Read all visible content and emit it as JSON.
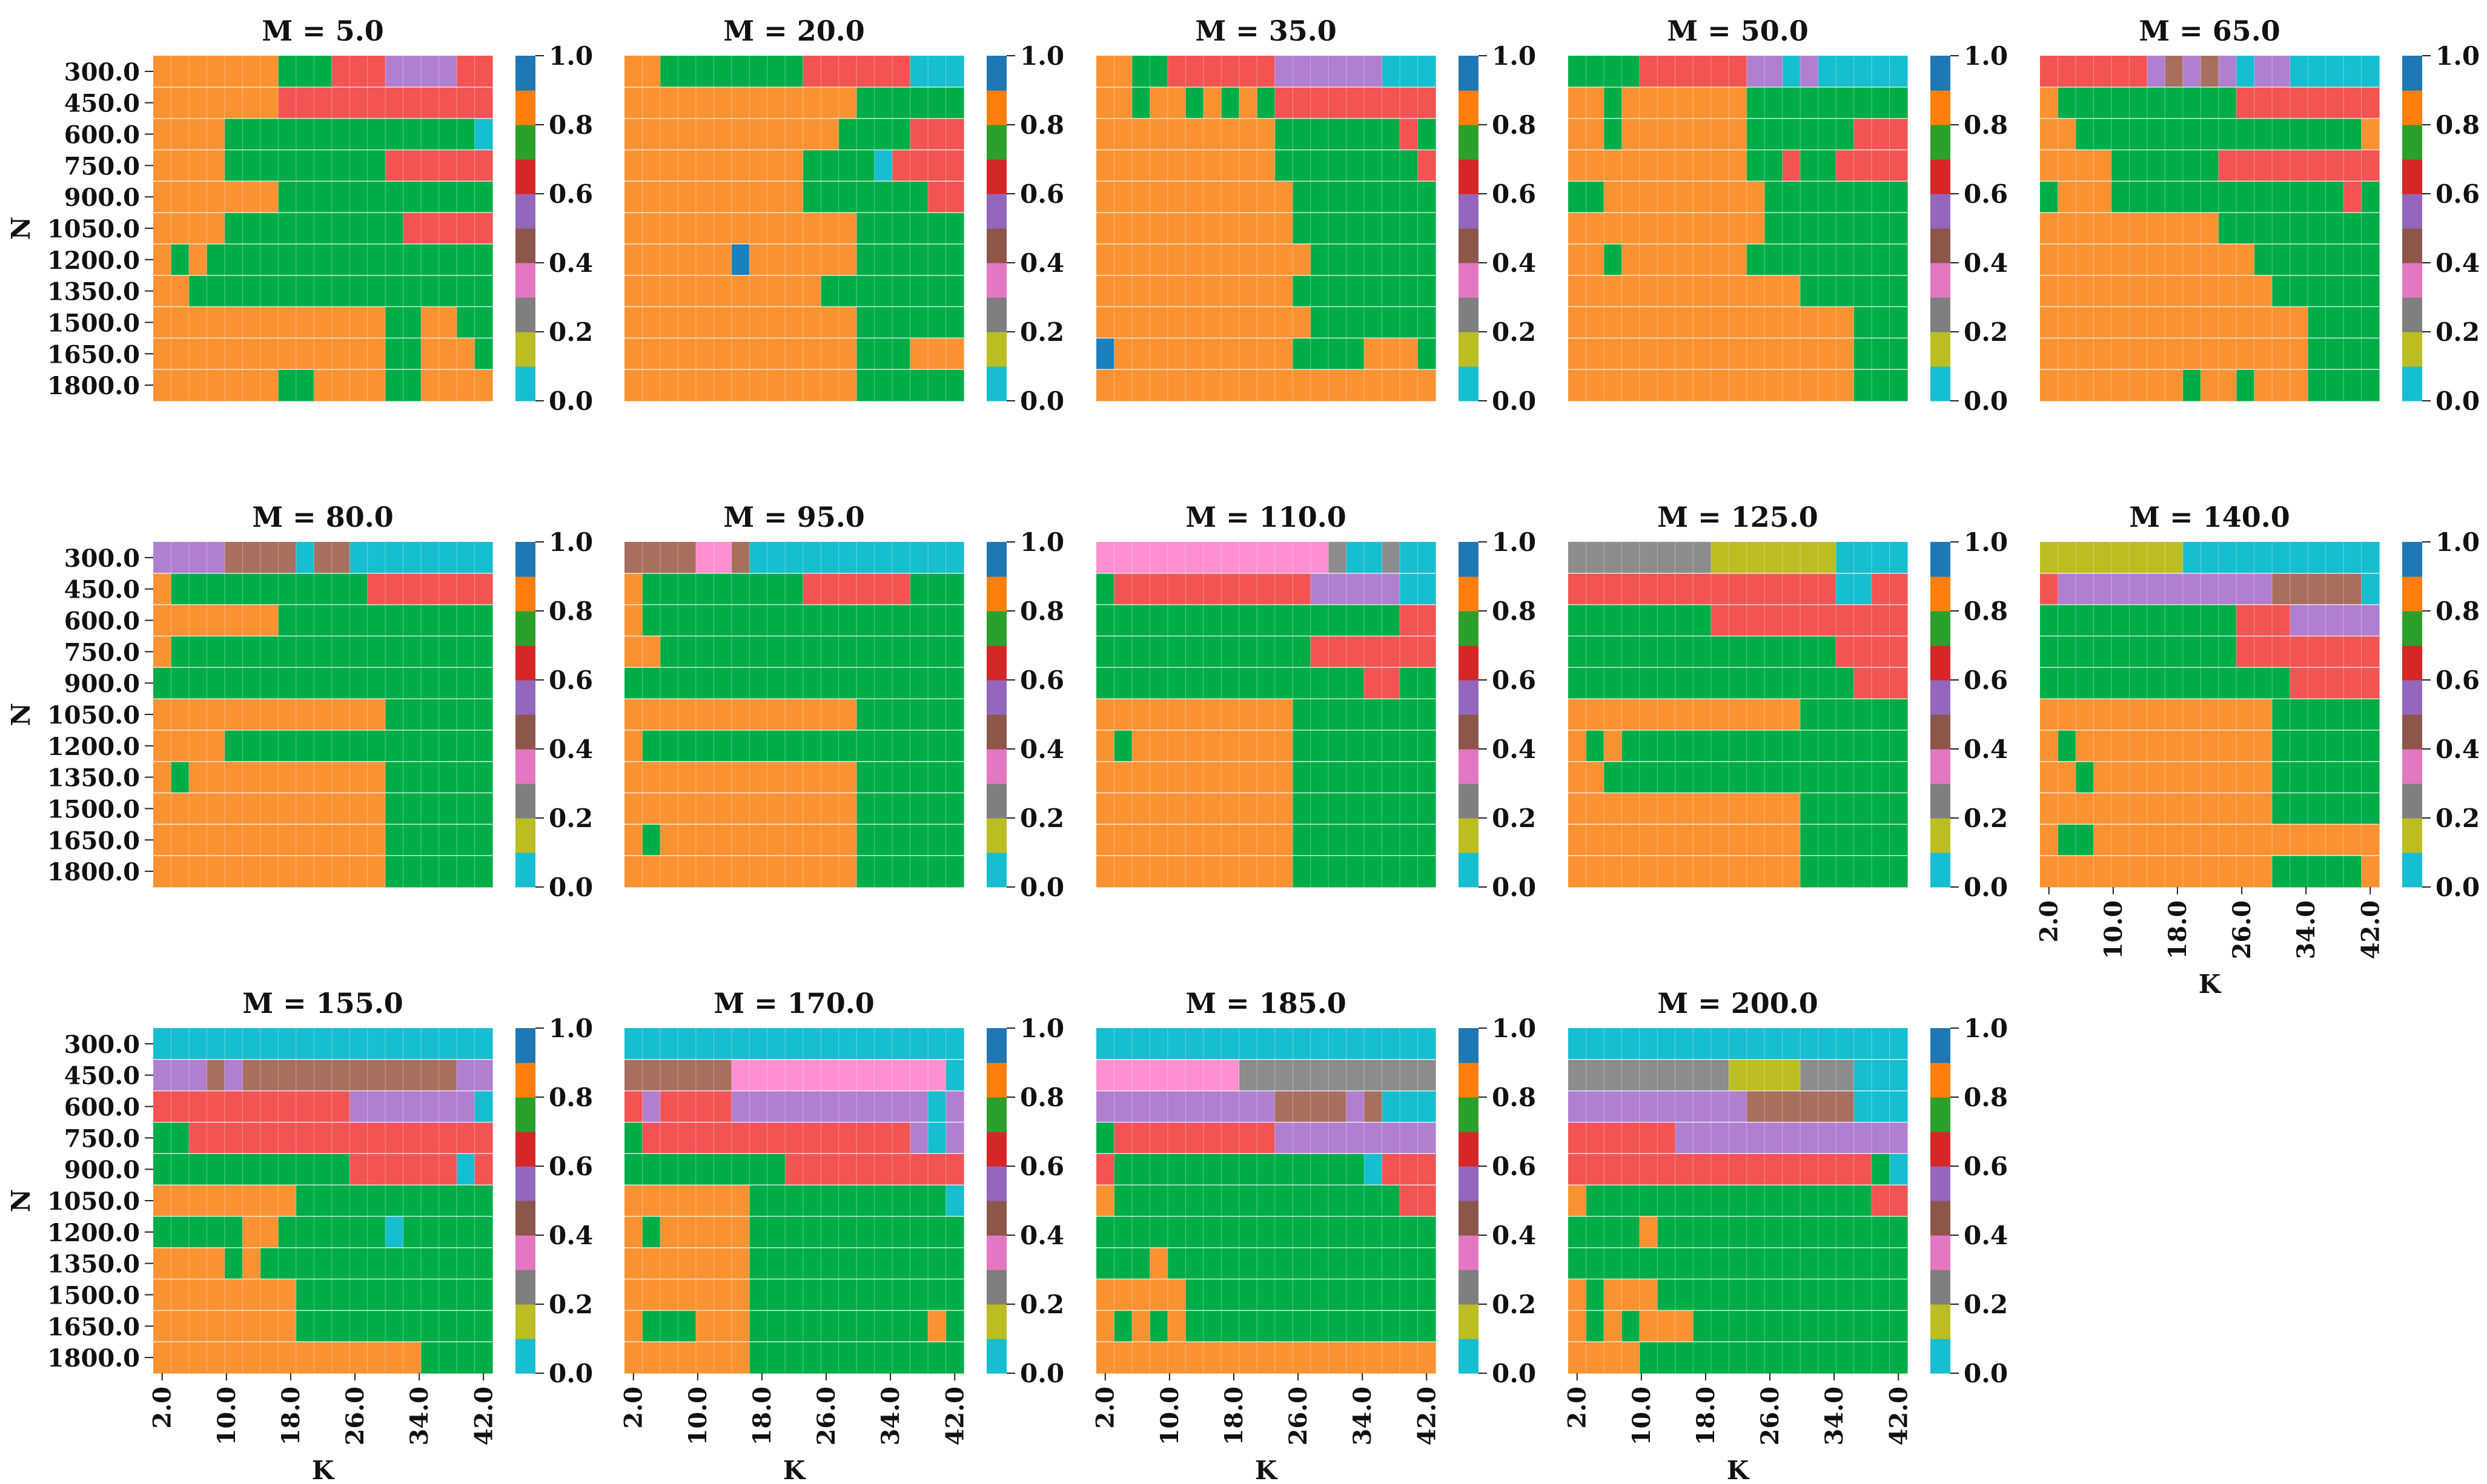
{
  "chart_data": {
    "type": "heatmap",
    "figure_panels": "14 heatmaps, 5 columns x 3 rows",
    "y_label": "N",
    "x_label": "K",
    "y_tick_labels": [
      "300.0",
      "450.0",
      "600.0",
      "750.0",
      "900.0",
      "1050.0",
      "1200.0",
      "1350.0",
      "1500.0",
      "1650.0",
      "1800.0"
    ],
    "x_tick_labels": [
      "2.0",
      "10.0",
      "18.0",
      "26.0",
      "34.0",
      "42.0"
    ],
    "colorbar_tick_labels": [
      "1.0",
      "0.8",
      "0.6",
      "0.4",
      "0.2",
      "0.0"
    ],
    "colorbar_levels": [
      1.0,
      0.9,
      0.8,
      0.7,
      0.6,
      0.5,
      0.4,
      0.3,
      0.2,
      0.1,
      0.0
    ],
    "palette": [
      "#17becf",
      "#bcbd22",
      "#7f7f7f",
      "#e377c2",
      "#8c564b",
      "#9467bd",
      "#d62728",
      "#2ca02c",
      "#ff7f0e",
      "#1f77b4"
    ],
    "cell_colors": {
      "0": "#17becf",
      "1": "#bcbd22",
      "2": "#8c8c8c",
      "3": "#ff8fd0",
      "4": "#a86e5e",
      "5": "#b07fd0",
      "6": "#f25353",
      "7": "#00ad48",
      "8": "#fa9232",
      "9": "#1a80bb"
    },
    "cell_value_note": "each grid cell holds a colour class 0-9; class k corresponds to value (k+0.5)/10 on the colourbar",
    "panels": [
      {
        "title": "M = 5.0",
        "grid": [
          "8888888777666555566",
          "8888888666666666666",
          "8888777777777777770",
          "8888777777777666666",
          "8888888777777777777",
          "8888777777777766666",
          "8787777777777777777",
          "8877777777777777777",
          "8888888888888778877",
          "8888888888888778887",
          "8888888778888778888"
        ]
      },
      {
        "title": "M = 20.0",
        "grid": [
          "8877777777666666000",
          "8888888888888777777",
          "8888888888887777666",
          "8888888888777706666",
          "8888888888777777766",
          "8888888888888777777",
          "8888889888888777777",
          "8888888888877777777",
          "8888888888888777777",
          "8888888888888777888",
          "8888888888888777777"
        ]
      },
      {
        "title": "M = 35.0",
        "grid": [
          "8877666666555555000",
          "8878878787666666666",
          "8888888888777777767",
          "8888888888777777776",
          "8888888888877777777",
          "8888888888877777777",
          "8888888888887777777",
          "8888888888877777777",
          "8888888888887777777",
          "9888888888877778887",
          "8888888888888888888"
        ]
      },
      {
        "title": "M = 50.0",
        "grid": [
          "7777666666550500000",
          "8878888888777777777",
          "8878888888777777666",
          "8888888888776776666",
          "7788888888877777777",
          "8888888888877777777",
          "8878888888777777777",
          "8888888888888777777",
          "8888888888888888777",
          "8888888888888888777",
          "8888888888888888777"
        ]
      },
      {
        "title": "M = 65.0",
        "grid": [
          "6666665454505500000",
          "8777777777766666666",
          "8877777777777777778",
          "8888777777666666666",
          "7888777777777777767",
          "8888888888777777777",
          "8888888888887777777",
          "8888888888888777777",
          "8888888888888887777",
          "8888888888888887777",
          "8888888878878887777"
        ]
      },
      {
        "title": "M = 80.0",
        "grid": [
          "5555444404400000000",
          "8777777777776666666",
          "8888888777777777777",
          "8777777777777777777",
          "7777777777777777777",
          "8888888888888777777",
          "8888777777777777777",
          "8788888888888777777",
          "8888888888888777777",
          "8888888888888777777",
          "8888888888888777777"
        ]
      },
      {
        "title": "M = 95.0",
        "grid": [
          "4444334000000000000",
          "8777777777666666777",
          "8777777777777777777",
          "8877777777777777777",
          "7777777777777777777",
          "8888888888888777777",
          "8777777777777777777",
          "8888888888888777777",
          "8888888888888777777",
          "8788888888888777777",
          "8888888888888777777"
        ]
      },
      {
        "title": "M = 110.0",
        "grid": [
          "3333333333333200200",
          "7666666666665555500",
          "7777777777777777766",
          "7777777777776666666",
          "7777777777777776677",
          "8888888888877777777",
          "8788888888877777777",
          "8888888888877777777",
          "8888888888877777777",
          "8888888888877777777",
          "8888888888877777777"
        ]
      },
      {
        "title": "M = 125.0",
        "grid": [
          "2222222211111110000",
          "6666666666666660066",
          "7777777766666666666",
          "7777777777777776666",
          "7777777777777777666",
          "8888888888888777777",
          "8787777777777777777",
          "8877777777777777777",
          "8888888888888777777",
          "8888888888888777777",
          "8888888888888777777"
        ]
      },
      {
        "title": "M = 140.0",
        "grid": [
          "1111111100000000000",
          "6555555555555444440",
          "7777777777766655555",
          "7777777777766666666",
          "7777777777777766666",
          "8888888888888777777",
          "8788888888888777777",
          "8878888888888777777",
          "8888888888888777777",
          "8778888888888888888",
          "8888888888888777778"
        ]
      },
      {
        "title": "M = 155.0",
        "grid": [
          "0000000000000000000",
          "5554544444444444455",
          "6666666666655555550",
          "7766666666666666666",
          "7777777777766666606",
          "8888888877777777777",
          "7777788777777077777",
          "8888787777777777777",
          "8888888877777777777",
          "8888888877777777777",
          "8888888888888887777"
        ]
      },
      {
        "title": "M = 170.0",
        "grid": [
          "0000000000000000000",
          "4444443333333333330",
          "6566665555555555505",
          "7666666666666666505",
          "7777777776666666666",
          "8888888777777777770",
          "8788888777777777777",
          "8888888777777777777",
          "8888888777777777777",
          "8777888777777777787",
          "8888888777777777777"
        ]
      },
      {
        "title": "M = 185.0",
        "grid": [
          "0000000000000000000",
          "3333333322222222222",
          "5555555555444454000",
          "7666666666555555555",
          "6777777777777770666",
          "8777777777777777766",
          "7777777777777777777",
          "7778777777777777777",
          "8888877777777777777",
          "8787877777777777777",
          "8888888888888888888"
        ]
      },
      {
        "title": "M = 200.0",
        "grid": [
          "0000000000000000000",
          "2222222221111222000",
          "5555555555444444000",
          "6666665555555555555",
          "6666666666666666670",
          "8777777777777777766",
          "7777877777777777777",
          "7777777777777777777",
          "8788877777777777777",
          "8787888777777777777",
          "8888777777777777777"
        ]
      }
    ]
  }
}
